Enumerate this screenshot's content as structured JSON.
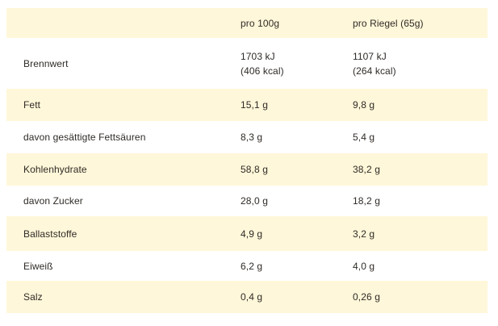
{
  "table": {
    "header": {
      "col1": "",
      "col2": "pro 100g",
      "col3": "pro Riegel (65g)"
    },
    "rows": [
      {
        "label": "Brennwert",
        "per100_line1": "1703 kJ",
        "per100_line2": "(406 kcal)",
        "perBar_line1": "1107 kJ",
        "perBar_line2": "(264 kcal)"
      },
      {
        "label": "Fett",
        "per100": "15,1 g",
        "perBar": "9,8 g"
      },
      {
        "label": "davon gesättigte Fettsäuren",
        "per100": "8,3 g",
        "perBar": "5,4 g"
      },
      {
        "label": "Kohlenhydrate",
        "per100": "58,8 g",
        "perBar": "38,2 g"
      },
      {
        "label": "davon Zucker",
        "per100": "28,0 g",
        "perBar": "18,2 g"
      },
      {
        "label": "Ballaststoffe",
        "per100": "4,9 g",
        "perBar": "3,2 g"
      },
      {
        "label": "Eiweiß",
        "per100": "6,2 g",
        "perBar": "4,0 g"
      },
      {
        "label": "Salz",
        "per100": "0,4 g",
        "perBar": "0,26 g"
      }
    ]
  },
  "colors": {
    "stripe": "#fff7d9",
    "text": "#2f2a26"
  }
}
